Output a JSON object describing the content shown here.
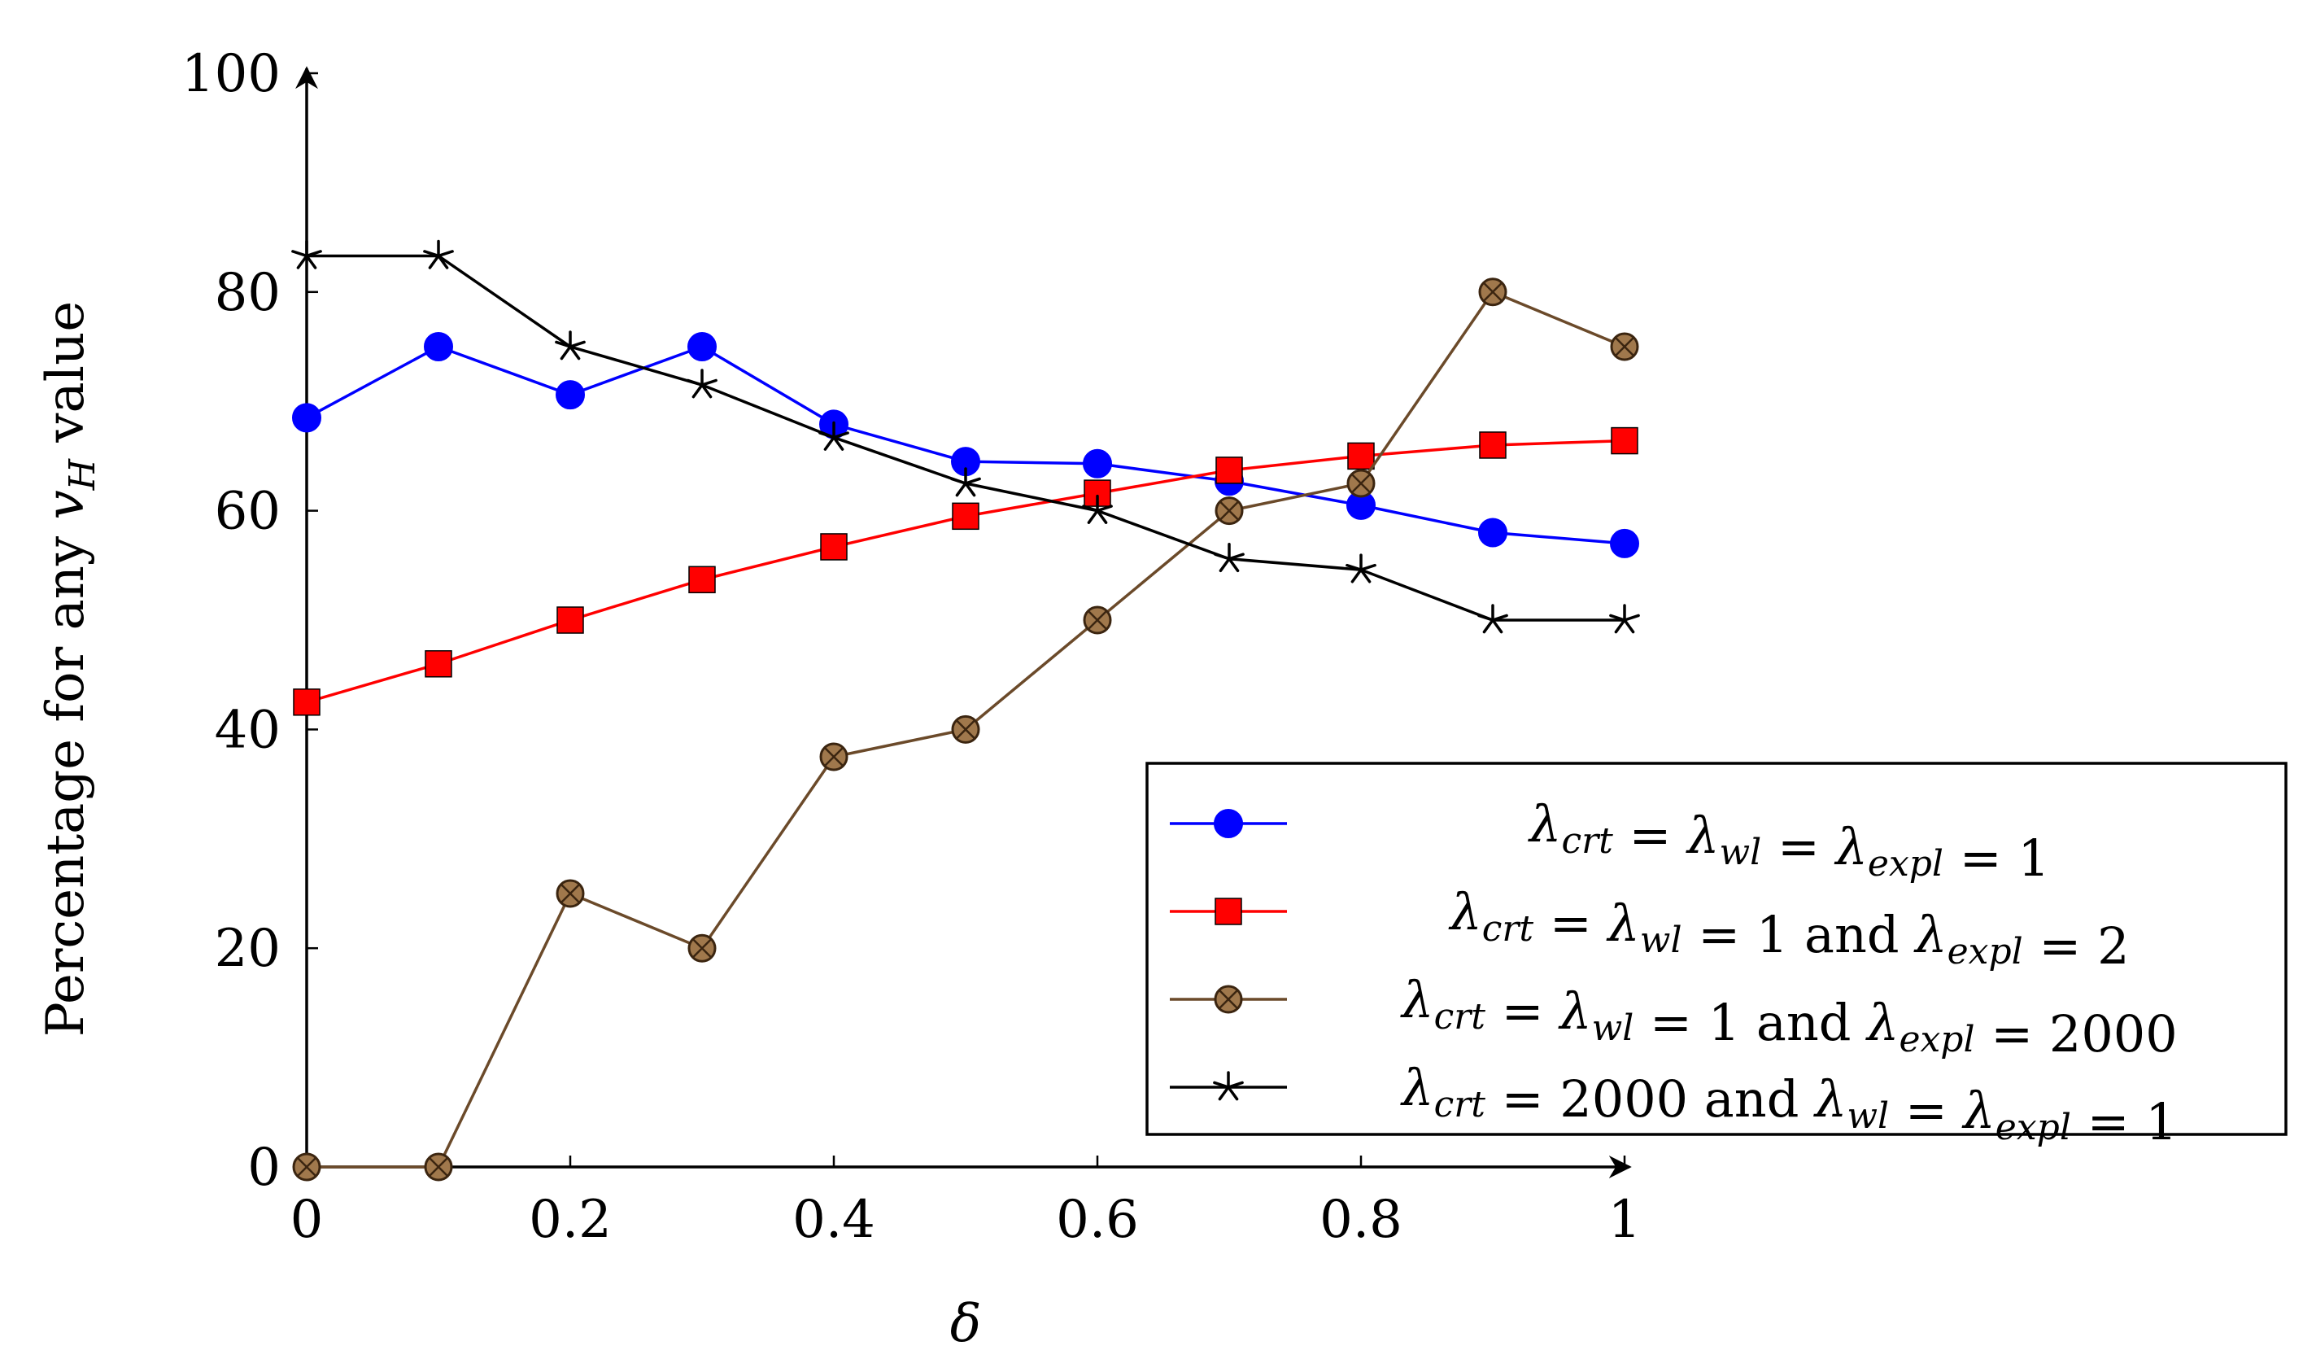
{
  "chart_data": {
    "type": "line",
    "title": "",
    "xlabel": "δ",
    "ylabel": "Percentage for any v_H value",
    "ylabel_parts": {
      "prefix": "Percentage for any ",
      "var": "v",
      "sub": "H",
      "suffix": " value"
    },
    "xlim": [
      0,
      1
    ],
    "ylim": [
      0,
      100
    ],
    "x_ticks": [
      0,
      0.2,
      0.4,
      0.6,
      0.8,
      1
    ],
    "x_tick_labels": [
      "0",
      "0.2",
      "0.4",
      "0.6",
      "0.8",
      "1"
    ],
    "y_ticks": [
      0,
      20,
      40,
      60,
      80,
      100
    ],
    "y_tick_labels": [
      "0",
      "20",
      "40",
      "60",
      "80",
      "100"
    ],
    "x": [
      0,
      0.1,
      0.2,
      0.3,
      0.4,
      0.5,
      0.6,
      0.7,
      0.8,
      0.9,
      1
    ],
    "grid": false,
    "legend_position": "bottom-right",
    "series": [
      {
        "name": "λcrt = λwl = λexpl = 1",
        "color": "#0000ff",
        "marker": "circle",
        "values": [
          68.5,
          75,
          70.6,
          75,
          67.9,
          64.5,
          64.3,
          62.7,
          60.5,
          58,
          57
        ]
      },
      {
        "name": "λcrt = λwl = 1 and λexpl = 2",
        "color": "#ff0000",
        "marker": "square",
        "values": [
          42.5,
          46,
          50,
          53.7,
          56.7,
          59.5,
          61.6,
          63.7,
          65,
          66,
          66.4
        ]
      },
      {
        "name": "λcrt = λwl = 1 and λexpl = 2000",
        "color": "#6b4a2a",
        "marker": "otimes",
        "values": [
          0,
          0,
          25,
          20,
          37.5,
          40,
          50,
          60,
          62.5,
          80,
          75
        ]
      },
      {
        "name": "λcrt = 2000 and λwl = λexpl = 1",
        "color": "#000000",
        "marker": "star",
        "values": [
          83.3,
          83.3,
          75,
          71.5,
          66.7,
          62.5,
          60,
          55.6,
          54.6,
          50,
          50
        ]
      }
    ]
  }
}
